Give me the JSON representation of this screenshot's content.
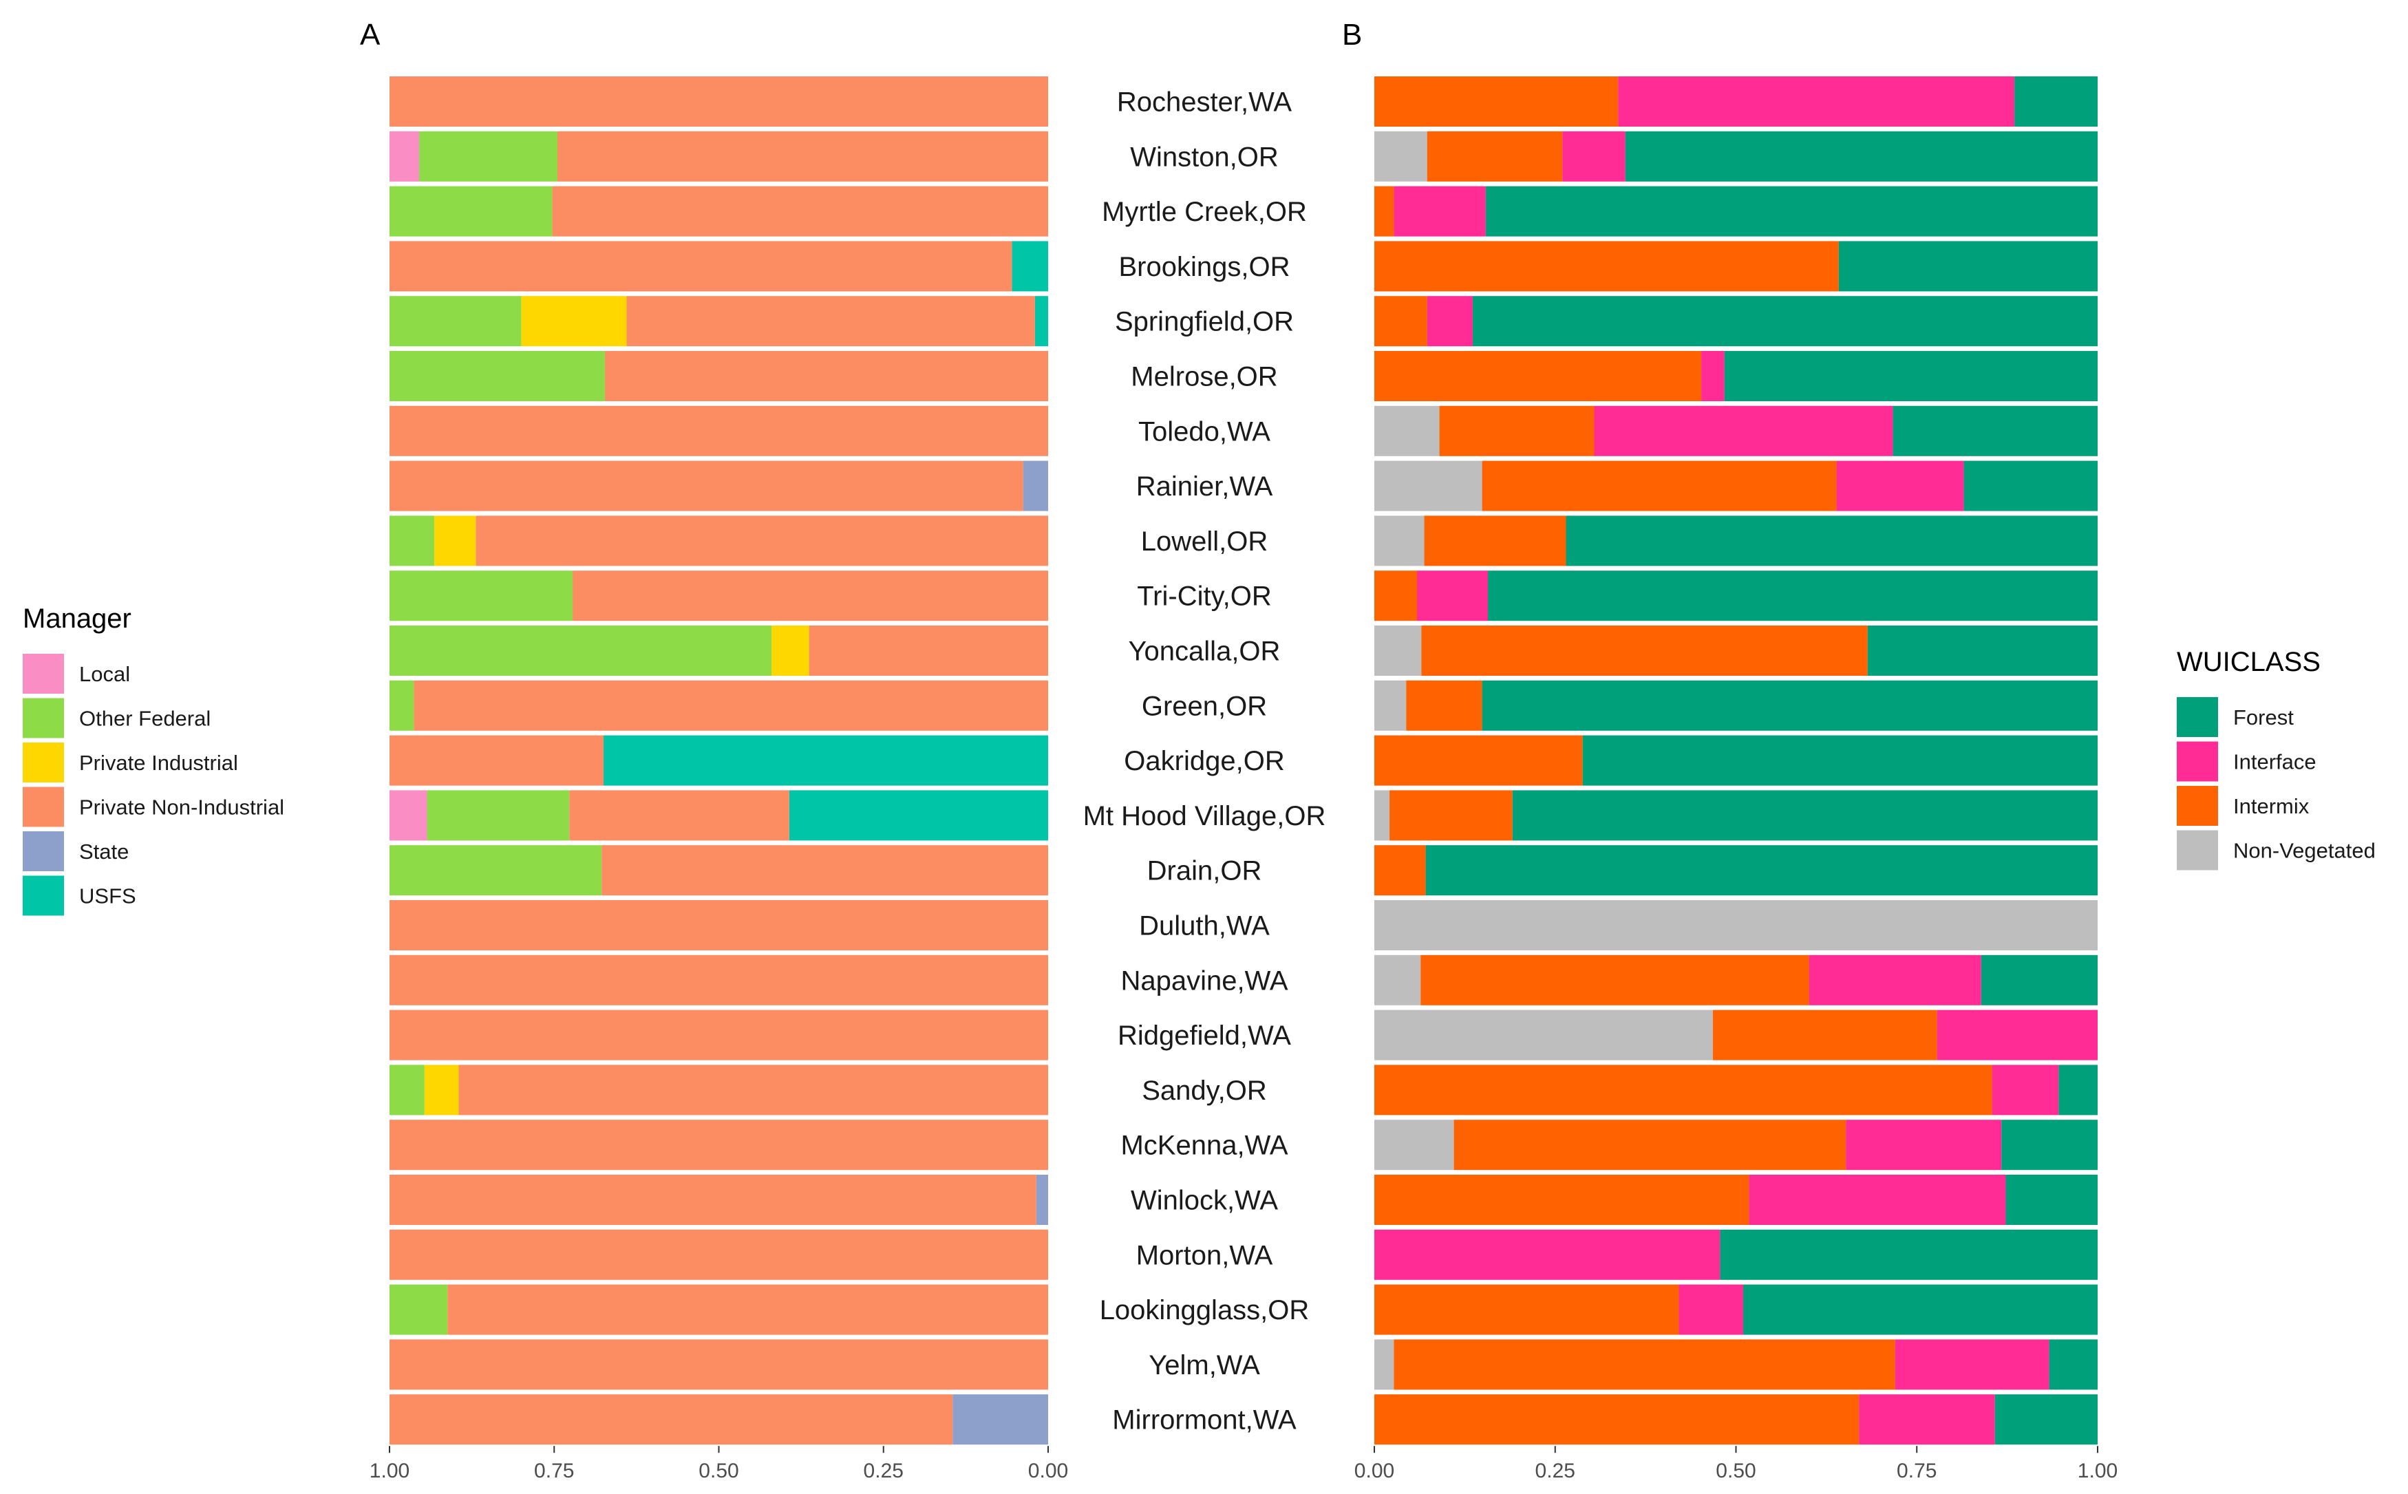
{
  "chart_data": [
    {
      "panel": "A",
      "type": "bar",
      "orientation": "horizontal-stacked",
      "x_reversed": true,
      "xlim": [
        0,
        1
      ],
      "xticks": [
        "1.00",
        "0.75",
        "0.50",
        "0.25",
        "0.00"
      ],
      "legend_title": "Manager",
      "legend_position": "left",
      "series": [
        {
          "name": "Local",
          "color": "#FB8DC5"
        },
        {
          "name": "Other Federal",
          "color": "#8DDB47"
        },
        {
          "name": "Private Industrial",
          "color": "#FFD700"
        },
        {
          "name": "Private Non-Industrial",
          "color": "#FC8D62"
        },
        {
          "name": "State",
          "color": "#8DA0CB"
        },
        {
          "name": "USFS",
          "color": "#00C5A6"
        }
      ],
      "bar_order_right_to_left": [
        "USFS",
        "State",
        "Private Non-Industrial",
        "Private Industrial",
        "Other Federal",
        "Local"
      ],
      "values": [
        {
          "Private Non-Industrial": 1.0
        },
        {
          "Local": 0.045,
          "Other Federal": 0.21,
          "Private Non-Industrial": 0.745
        },
        {
          "Other Federal": 0.247,
          "Private Non-Industrial": 0.753
        },
        {
          "Private Non-Industrial": 0.945,
          "USFS": 0.055
        },
        {
          "Other Federal": 0.2,
          "Private Industrial": 0.16,
          "Private Non-Industrial": 0.62,
          "USFS": 0.02
        },
        {
          "Other Federal": 0.327,
          "Private Non-Industrial": 0.673
        },
        {
          "Private Non-Industrial": 1.0
        },
        {
          "Private Non-Industrial": 0.962,
          "State": 0.038
        },
        {
          "Other Federal": 0.068,
          "Private Industrial": 0.063,
          "Private Non-Industrial": 0.869
        },
        {
          "Other Federal": 0.278,
          "Private Non-Industrial": 0.722
        },
        {
          "Other Federal": 0.58,
          "Private Industrial": 0.057,
          "Private Non-Industrial": 0.363
        },
        {
          "Other Federal": 0.037,
          "Private Non-Industrial": 0.963
        },
        {
          "Private Non-Industrial": 0.325,
          "USFS": 0.675
        },
        {
          "Local": 0.057,
          "Other Federal": 0.216,
          "Private Non-Industrial": 0.334,
          "USFS": 0.393
        },
        {
          "Other Federal": 0.322,
          "Private Non-Industrial": 0.678
        },
        {
          "Private Non-Industrial": 1.0
        },
        {
          "Private Non-Industrial": 1.0
        },
        {
          "Private Non-Industrial": 1.0
        },
        {
          "Other Federal": 0.053,
          "Private Industrial": 0.052,
          "Private Non-Industrial": 0.895
        },
        {
          "Private Non-Industrial": 1.0
        },
        {
          "Private Non-Industrial": 0.982,
          "State": 0.018
        },
        {
          "Private Non-Industrial": 1.0
        },
        {
          "Other Federal": 0.088,
          "Private Non-Industrial": 0.912
        },
        {
          "Private Non-Industrial": 1.0
        },
        {
          "Private Non-Industrial": 0.855,
          "State": 0.145
        }
      ]
    },
    {
      "panel": "B",
      "type": "bar",
      "orientation": "horizontal-stacked",
      "xlim": [
        0,
        1
      ],
      "xticks": [
        "0.00",
        "0.25",
        "0.50",
        "0.75",
        "1.00"
      ],
      "legend_title": "WUICLASS",
      "legend_position": "right",
      "series": [
        {
          "name": "Forest",
          "color": "#00A07A"
        },
        {
          "name": "Interface",
          "color": "#FF2C96"
        },
        {
          "name": "Intermix",
          "color": "#FF6200"
        },
        {
          "name": "Non-Vegetated",
          "color": "#BEBEBE"
        }
      ],
      "bar_order_left_to_right": [
        "Non-Vegetated",
        "Intermix",
        "Interface",
        "Forest"
      ],
      "values": [
        {
          "Intermix": 0.337,
          "Interface": 0.548,
          "Forest": 0.115
        },
        {
          "Non-Vegetated": 0.073,
          "Intermix": 0.187,
          "Interface": 0.087,
          "Forest": 0.653
        },
        {
          "Intermix": 0.027,
          "Interface": 0.127,
          "Forest": 0.846
        },
        {
          "Intermix": 0.642,
          "Forest": 0.358
        },
        {
          "Intermix": 0.073,
          "Interface": 0.063,
          "Forest": 0.864
        },
        {
          "Intermix": 0.452,
          "Interface": 0.032,
          "Forest": 0.516
        },
        {
          "Non-Vegetated": 0.09,
          "Intermix": 0.214,
          "Interface": 0.413,
          "Forest": 0.283
        },
        {
          "Non-Vegetated": 0.149,
          "Intermix": 0.49,
          "Interface": 0.176,
          "Forest": 0.185
        },
        {
          "Non-Vegetated": 0.069,
          "Intermix": 0.196,
          "Forest": 0.735
        },
        {
          "Intermix": 0.059,
          "Interface": 0.098,
          "Forest": 0.843
        },
        {
          "Non-Vegetated": 0.065,
          "Intermix": 0.617,
          "Forest": 0.318
        },
        {
          "Non-Vegetated": 0.044,
          "Intermix": 0.105,
          "Forest": 0.851
        },
        {
          "Intermix": 0.288,
          "Forest": 0.712
        },
        {
          "Non-Vegetated": 0.021,
          "Intermix": 0.17,
          "Forest": 0.809
        },
        {
          "Intermix": 0.071,
          "Forest": 0.929
        },
        {
          "Non-Vegetated": 1.0
        },
        {
          "Non-Vegetated": 0.064,
          "Intermix": 0.537,
          "Interface": 0.238,
          "Forest": 0.161
        },
        {
          "Non-Vegetated": 0.468,
          "Intermix": 0.31,
          "Interface": 0.222
        },
        {
          "Intermix": 0.854,
          "Interface": 0.092,
          "Forest": 0.054
        },
        {
          "Non-Vegetated": 0.11,
          "Intermix": 0.542,
          "Interface": 0.215,
          "Forest": 0.133
        },
        {
          "Intermix": 0.518,
          "Interface": 0.355,
          "Forest": 0.127
        },
        {
          "Interface": 0.478,
          "Forest": 0.522
        },
        {
          "Intermix": 0.421,
          "Interface": 0.089,
          "Forest": 0.49
        },
        {
          "Non-Vegetated": 0.027,
          "Intermix": 0.693,
          "Interface": 0.213,
          "Forest": 0.067
        },
        {
          "Intermix": 0.67,
          "Interface": 0.188,
          "Forest": 0.142
        }
      ]
    }
  ],
  "towns": [
    "Rochester,WA",
    "Winston,OR",
    "Myrtle Creek,OR",
    "Brookings,OR",
    "Springfield,OR",
    "Melrose,OR",
    "Toledo,WA",
    "Rainier,WA",
    "Lowell,OR",
    "Tri-City,OR",
    "Yoncalla,OR",
    "Green,OR",
    "Oakridge,OR",
    "Mt Hood Village,OR",
    "Drain,OR",
    "Duluth,WA",
    "Napavine,WA",
    "Ridgefield,WA",
    "Sandy,OR",
    "McKenna,WA",
    "Winlock,WA",
    "Morton,WA",
    "Lookingglass,OR",
    "Yelm,WA",
    "Mirrormont,WA"
  ]
}
